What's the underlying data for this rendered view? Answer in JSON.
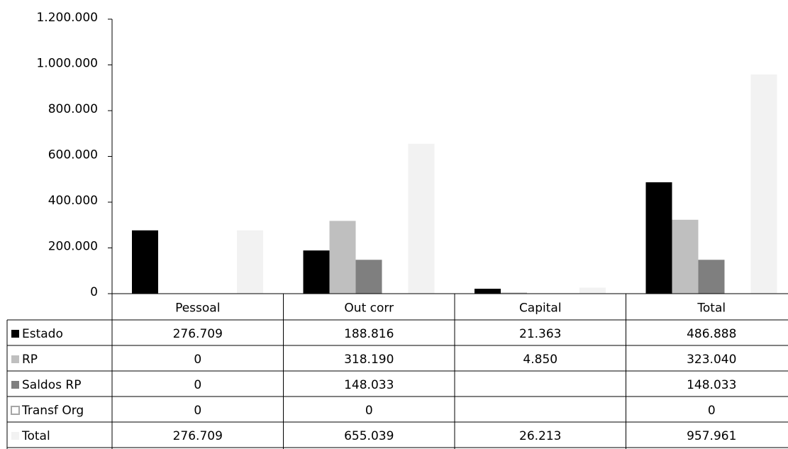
{
  "chart_data": {
    "type": "bar",
    "categories": [
      "Pessoal",
      "Out corr",
      "Capital",
      "Total"
    ],
    "series": [
      {
        "name": "Estado",
        "color": "#000000",
        "values": [
          276709,
          188816,
          21363,
          486888
        ],
        "value_labels": [
          "276.709",
          "188.816",
          "21.363",
          "486.888"
        ]
      },
      {
        "name": "RP",
        "color": "#bfbfbf",
        "values": [
          0,
          318190,
          4850,
          323040
        ],
        "value_labels": [
          "0",
          "318.190",
          "4.850",
          "323.040"
        ]
      },
      {
        "name": "Saldos RP",
        "color": "#7f7f7f",
        "values": [
          0,
          148033,
          null,
          148033
        ],
        "value_labels": [
          "0",
          "148.033",
          null,
          "148.033"
        ]
      },
      {
        "name": "Transf Org",
        "color": "#ffffff",
        "values": [
          0,
          0,
          null,
          0
        ],
        "value_labels": [
          "0",
          "0",
          null,
          "0"
        ]
      },
      {
        "name": "Total",
        "color": "#f2f2f2",
        "values": [
          276709,
          655039,
          26213,
          957961
        ],
        "value_labels": [
          "276.709",
          "655.039",
          "26.213",
          "957.961"
        ]
      }
    ],
    "ylim": [
      0,
      1200000
    ],
    "yticks": [
      0,
      {
        "value": 200000,
        "label": "200.000"
      },
      {
        "value": 400000,
        "label": "400.000"
      },
      {
        "value": 600000,
        "label": "600.000"
      },
      {
        "value": 800000,
        "label": "800.000"
      },
      {
        "value": 1000000,
        "label": "1.000.000"
      },
      {
        "value": 1200000,
        "label": "1.200.000"
      }
    ],
    "grid": false
  }
}
